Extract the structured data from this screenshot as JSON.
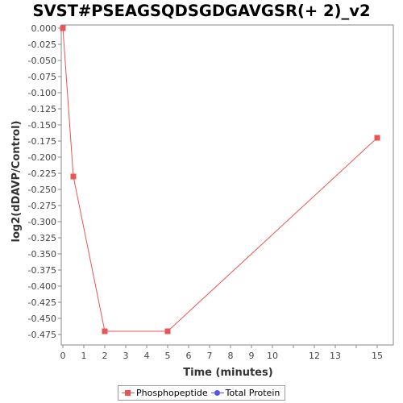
{
  "chart_data": {
    "type": "line",
    "title": "SVST#PSEAGSQDSGDGAVGSR(+ 2)_v2",
    "xlabel": "Time (minutes)",
    "ylabel": "log2(dDAVP/Control)",
    "x_ticks": [
      "0",
      "1",
      "2",
      "3",
      "4",
      "5",
      "6",
      "7",
      "8",
      "9",
      "10",
      "12",
      "13",
      "15"
    ],
    "y_ticks": [
      "0.000",
      "-0.025",
      "-0.050",
      "-0.075",
      "-0.100",
      "-0.125",
      "-0.150",
      "-0.175",
      "-0.200",
      "-0.225",
      "-0.250",
      "-0.275",
      "-0.300",
      "-0.325",
      "-0.350",
      "-0.375",
      "-0.400",
      "-0.425",
      "-0.450",
      "-0.475"
    ],
    "ylim": [
      -0.49,
      0.0
    ],
    "series": [
      {
        "name": "Phosphopeptide",
        "color": "#e85555",
        "marker": "square",
        "points": [
          {
            "x": "0",
            "y": 0.0
          },
          {
            "x": "0.5",
            "y": -0.23
          },
          {
            "x": "2",
            "y": -0.47
          },
          {
            "x": "5",
            "y": -0.47
          },
          {
            "x": "15",
            "y": -0.17
          }
        ]
      },
      {
        "name": "Total Protein",
        "color": "#5555ee",
        "marker": "circle",
        "points": []
      }
    ],
    "grid": false,
    "legend_position": "bottom"
  }
}
